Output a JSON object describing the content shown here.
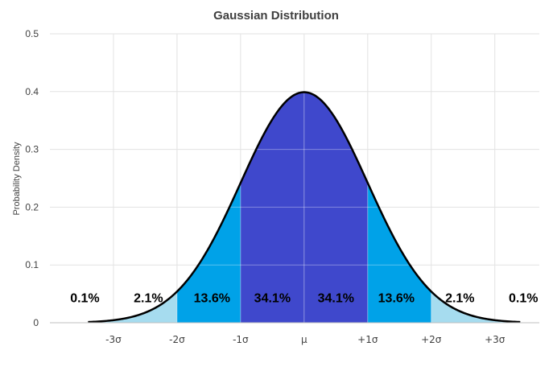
{
  "chart_data": {
    "type": "area",
    "title": "Gaussian Distribution",
    "xlabel": "",
    "ylabel": "Probability Density",
    "ylim": [
      0,
      0.5
    ],
    "xlim": [
      -4,
      3.7
    ],
    "y_ticks": [
      "0",
      "0.1",
      "0.2",
      "0.3",
      "0.4",
      "0.5"
    ],
    "x_ticks": [
      {
        "value": -3,
        "label": "-3σ"
      },
      {
        "value": -2,
        "label": "-2σ"
      },
      {
        "value": -1,
        "label": "-1σ"
      },
      {
        "value": 0,
        "label": "μ"
      },
      {
        "value": 1,
        "label": "+1σ"
      },
      {
        "value": 2,
        "label": "+2σ"
      },
      {
        "value": 3,
        "label": "+3σ"
      }
    ],
    "grid": true,
    "curve_range": [
      -3.4,
      3.4
    ],
    "bands": [
      {
        "from": -3.4,
        "to": -3,
        "label": "0.1%",
        "label_x": -3.45,
        "color": "#a6dcef"
      },
      {
        "from": -3,
        "to": -2,
        "label": "2.1%",
        "label_x": -2.45,
        "color": "#a6dcef"
      },
      {
        "from": -2,
        "to": -1,
        "label": "13.6%",
        "label_x": -1.45,
        "color": "#00a2e8"
      },
      {
        "from": -1,
        "to": 0,
        "label": "34.1%",
        "label_x": -0.5,
        "color": "#3f48cc"
      },
      {
        "from": 0,
        "to": 1,
        "label": "34.1%",
        "label_x": 0.5,
        "color": "#3f48cc"
      },
      {
        "from": 1,
        "to": 2,
        "label": "13.6%",
        "label_x": 1.45,
        "color": "#00a2e8"
      },
      {
        "from": 2,
        "to": 3,
        "label": "2.1%",
        "label_x": 2.45,
        "color": "#a6dcef"
      },
      {
        "from": 3,
        "to": 3.4,
        "label": "0.1%",
        "label_x": 3.45,
        "color": "#a6dcef"
      }
    ],
    "label_y": 0.044,
    "curve_color": "#000000"
  }
}
